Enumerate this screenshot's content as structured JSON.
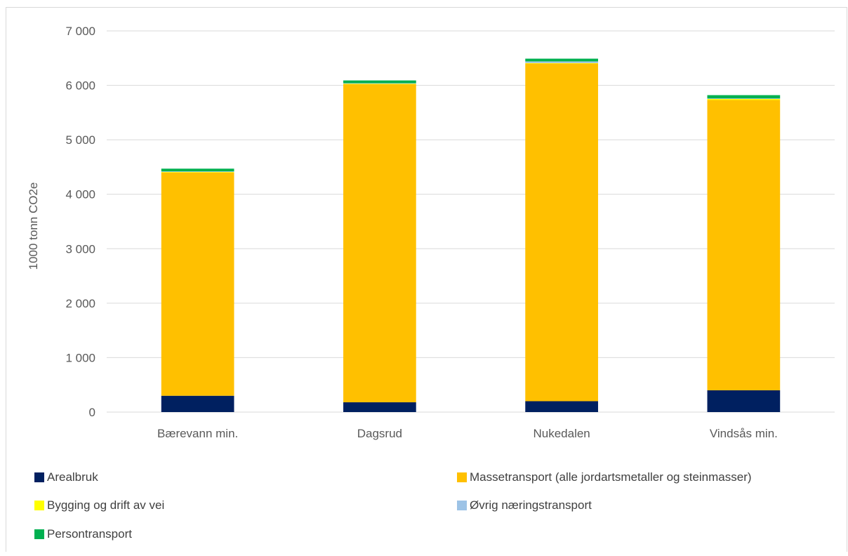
{
  "chart_data": {
    "type": "bar",
    "stacked": true,
    "title": "",
    "xlabel": "",
    "ylabel": "1000 tonn CO2e",
    "ylim": [
      0,
      7000
    ],
    "yticks": [
      0,
      1000,
      2000,
      3000,
      4000,
      5000,
      6000,
      7000
    ],
    "ytick_labels": [
      "0",
      "1 000",
      "2 000",
      "3 000",
      "4 000",
      "5 000",
      "6 000",
      "7 000"
    ],
    "grid": true,
    "legend_position": "bottom",
    "categories": [
      "Bærevann min.",
      "Dagsrud",
      "Nukedalen",
      "Vindsås min."
    ],
    "series": [
      {
        "name": "Arealbruk",
        "color": "#002060",
        "values": [
          300,
          180,
          200,
          400
        ]
      },
      {
        "name": "Massetransport (alle jordartsmetaller og steinmasser)",
        "color": "#ffc000",
        "values": [
          4100,
          5840,
          6200,
          5330
        ]
      },
      {
        "name": "Bygging og drift av vei",
        "color": "#ffff00",
        "values": [
          10,
          10,
          10,
          20
        ]
      },
      {
        "name": "Øvrig næringstransport",
        "color": "#9dc3e6",
        "values": [
          10,
          10,
          30,
          10
        ]
      },
      {
        "name": "Persontransport",
        "color": "#00b050",
        "values": [
          50,
          50,
          50,
          60
        ]
      }
    ]
  }
}
